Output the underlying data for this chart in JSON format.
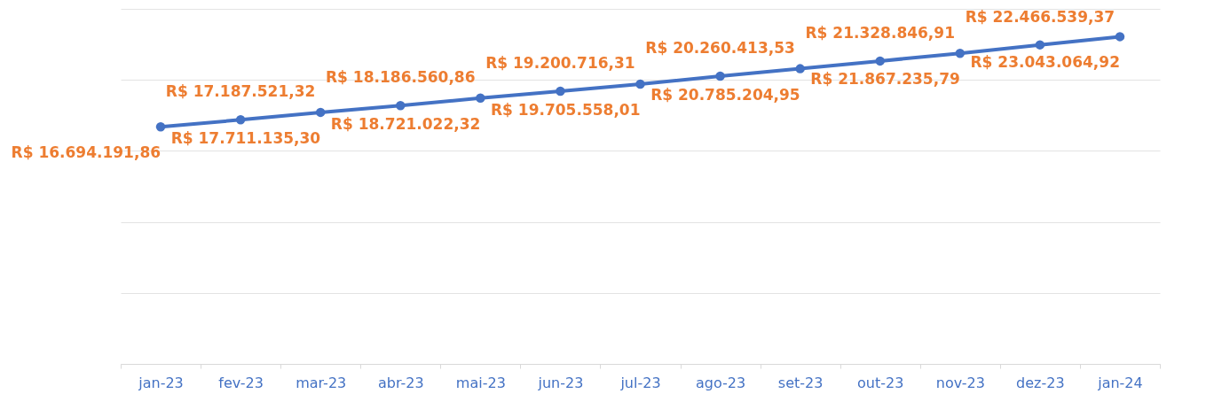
{
  "chart_data": {
    "type": "line",
    "categories": [
      "jan-23",
      "fev-23",
      "mar-23",
      "abr-23",
      "mai-23",
      "jun-23",
      "jul-23",
      "ago-23",
      "set-23",
      "out-23",
      "nov-23",
      "dez-23",
      "jan-24"
    ],
    "series": [
      {
        "color": "#4472c4",
        "values": [
          16694191.86,
          17187521.32,
          17711135.3,
          18186560.86,
          18721022.32,
          19200716.31,
          19705558.01,
          20260413.53,
          20785204.95,
          21328846.91,
          21867235.79,
          22466539.37,
          23043064.92
        ],
        "value_labels": [
          "R$ 16.694.191,86",
          "R$ 17.187.521,32",
          "R$ 17.711.135,30",
          "R$ 18.186.560,86",
          "R$ 18.721.022,32",
          "R$ 19.200.716,31",
          "R$ 19.705.558,01",
          "R$ 20.260.413,53",
          "R$ 20.785.204,95",
          "R$ 21.328.846,91",
          "R$ 21.867.235,79",
          "R$ 22.466.539,37",
          "R$ 23.043.064,92"
        ]
      }
    ],
    "ylim": [
      0,
      25000000
    ],
    "yticks": [
      {
        "value": 0,
        "label": null
      },
      {
        "value": 5000000,
        "label": null
      },
      {
        "value": 10000000,
        "label": null
      },
      {
        "value": 15000000,
        "label": null
      },
      {
        "value": 20000000,
        "label": null
      },
      {
        "value": 25000000,
        "label": null
      }
    ],
    "tick_labels": "x",
    "grid": "y",
    "marker": "circle",
    "line_style": "solid"
  }
}
